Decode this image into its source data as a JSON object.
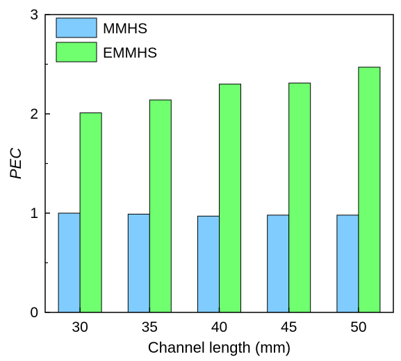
{
  "chart_data": {
    "type": "bar",
    "title": "",
    "xlabel": "Channel length (mm)",
    "ylabel": "PEC",
    "categories": [
      "30",
      "35",
      "40",
      "45",
      "50"
    ],
    "series": [
      {
        "name": "MMHS",
        "values": [
          1.0,
          0.99,
          0.97,
          0.98,
          0.98
        ],
        "color": "#80CCFF"
      },
      {
        "name": "EMMHS",
        "values": [
          2.01,
          2.14,
          2.3,
          2.31,
          2.47
        ],
        "color": "#6FFF6F"
      }
    ],
    "ylim": [
      0,
      3
    ],
    "yticks": [
      "0",
      "1",
      "2",
      "3"
    ],
    "grid": false,
    "legend_position": "top-left"
  }
}
